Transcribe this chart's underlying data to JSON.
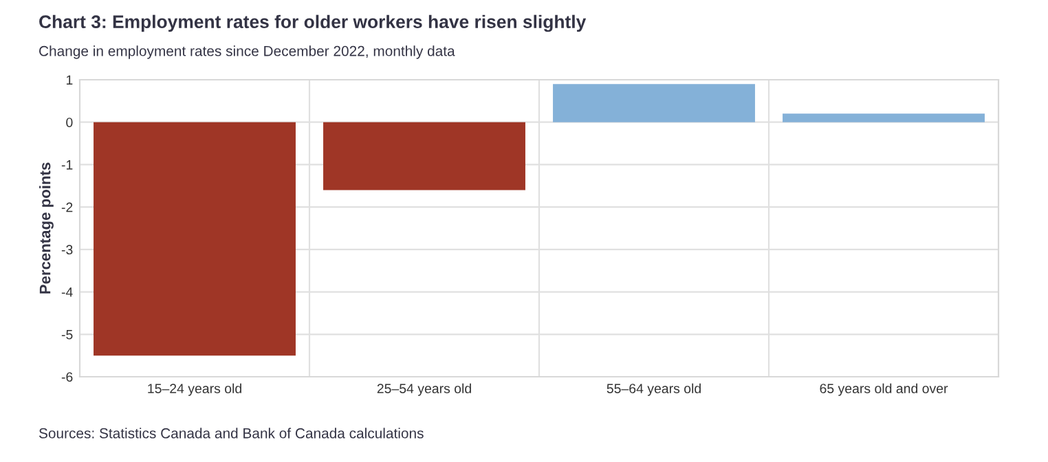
{
  "chart_data": {
    "type": "bar",
    "title": "Chart 3: Employment rates for older workers have risen slightly",
    "subtitle": "Change in employment rates since December 2022, monthly data",
    "ylabel": "Percentage points",
    "categories": [
      "15–24 years old",
      "25–54 years old",
      "55–64 years old",
      "65 years old and over"
    ],
    "values": [
      -5.5,
      -1.6,
      0.9,
      0.2
    ],
    "colors": [
      "#9f3626",
      "#9f3626",
      "#84b1d8",
      "#84b1d8"
    ],
    "ylim": [
      -6,
      1
    ],
    "yticks": [
      -6,
      -5,
      -4,
      -3,
      -2,
      -1,
      0,
      1
    ],
    "grid": true,
    "annotations": [
      "Sources: Statistics Canada and Bank of Canada calculations"
    ]
  }
}
